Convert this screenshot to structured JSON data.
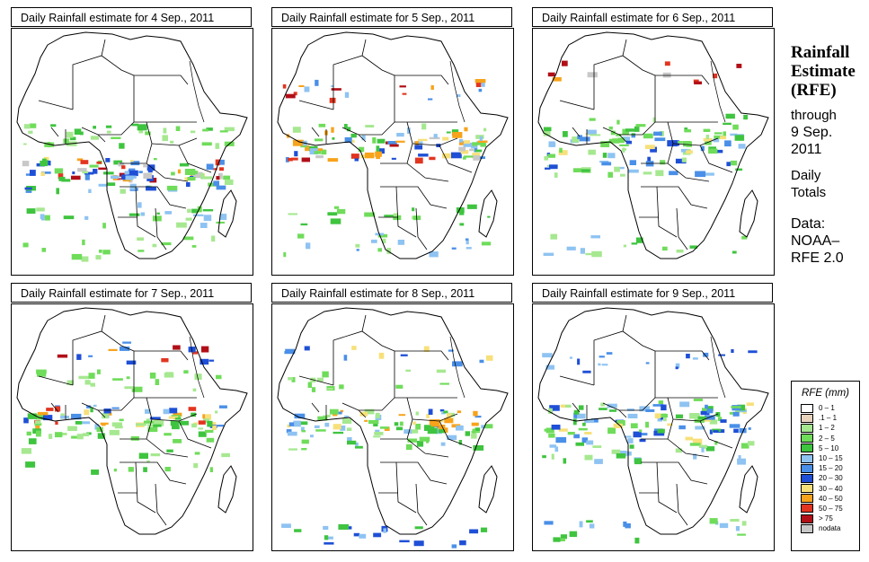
{
  "panels": [
    {
      "title": "Daily Rainfall estimate for  4 Sep., 2011",
      "pattern": [
        {
          "k": 0.52,
          "n": 60,
          "c": [
            3,
            4,
            5,
            6,
            7,
            8,
            9,
            10,
            11,
            12
          ]
        },
        {
          "k": 0.58,
          "n": 40,
          "c": [
            2,
            3,
            4,
            5,
            6,
            7
          ]
        },
        {
          "k": 0.35,
          "n": 35,
          "c": [
            2,
            3,
            4
          ]
        },
        {
          "k": 0.75,
          "n": 25,
          "c": [
            2,
            3,
            4,
            5
          ]
        },
        {
          "k": 0.92,
          "n": 15,
          "c": [
            2,
            3
          ]
        }
      ]
    },
    {
      "title": "Daily Rainfall estimate for  5 Sep., 2011",
      "pattern": [
        {
          "k": 0.42,
          "n": 60,
          "c": [
            3,
            4,
            5,
            6,
            7,
            8,
            9,
            10,
            11,
            12
          ]
        },
        {
          "k": 0.35,
          "n": 30,
          "c": [
            2,
            3,
            4,
            5,
            9
          ]
        },
        {
          "k": 0.12,
          "n": 20,
          "c": [
            5,
            6,
            9,
            10,
            11
          ]
        },
        {
          "k": 0.75,
          "n": 18,
          "c": [
            2,
            3,
            4
          ]
        },
        {
          "k": 0.9,
          "n": 18,
          "c": [
            2,
            3,
            5,
            6
          ]
        }
      ]
    },
    {
      "title": "Daily Rainfall estimate for  6 Sep., 2011",
      "pattern": [
        {
          "k": 0.38,
          "n": 55,
          "c": [
            2,
            3,
            4,
            5,
            6,
            7,
            8
          ]
        },
        {
          "k": 0.5,
          "n": 35,
          "c": [
            2,
            3,
            4,
            5,
            6,
            7
          ]
        },
        {
          "k": 0.3,
          "n": 20,
          "c": [
            2,
            3,
            4
          ]
        },
        {
          "k": 0.03,
          "n": 10,
          "c": [
            9,
            10,
            11,
            12
          ]
        },
        {
          "k": 0.9,
          "n": 15,
          "c": [
            2,
            3,
            4,
            5
          ]
        }
      ]
    },
    {
      "title": "Daily Rainfall estimate for  7 Sep., 2011",
      "pattern": [
        {
          "k": 0.38,
          "n": 65,
          "c": [
            2,
            3,
            4,
            5,
            6,
            7,
            8,
            9,
            10
          ]
        },
        {
          "k": 0.45,
          "n": 30,
          "c": [
            2,
            3,
            4
          ]
        },
        {
          "k": 0.2,
          "n": 20,
          "c": [
            2,
            3
          ]
        },
        {
          "k": 0.6,
          "n": 15,
          "c": [
            2,
            3,
            4
          ]
        },
        {
          "k": 0.05,
          "n": 15,
          "c": [
            6,
            7,
            9,
            10,
            11
          ]
        }
      ]
    },
    {
      "title": "Daily Rainfall estimate for  8 Sep., 2011",
      "pattern": [
        {
          "k": 0.4,
          "n": 65,
          "c": [
            2,
            3,
            4,
            5,
            6,
            7,
            8,
            9
          ]
        },
        {
          "k": 0.5,
          "n": 30,
          "c": [
            2,
            3,
            4,
            5
          ]
        },
        {
          "k": 0.2,
          "n": 15,
          "c": [
            2,
            3
          ]
        },
        {
          "k": 0.98,
          "n": 20,
          "c": [
            4,
            5,
            6,
            7
          ]
        },
        {
          "k": 0.08,
          "n": 12,
          "c": [
            6,
            7,
            8
          ]
        }
      ]
    },
    {
      "title": "Daily Rainfall estimate for  9 Sep., 2011",
      "pattern": [
        {
          "k": 0.35,
          "n": 55,
          "c": [
            2,
            3,
            4,
            5,
            6,
            7,
            8
          ]
        },
        {
          "k": 0.45,
          "n": 40,
          "c": [
            3,
            4,
            5,
            6,
            7,
            8
          ]
        },
        {
          "k": 0.55,
          "n": 30,
          "c": [
            2,
            3,
            4,
            5
          ]
        },
        {
          "k": 0.1,
          "n": 18,
          "c": [
            5,
            6,
            7
          ]
        },
        {
          "k": 0.95,
          "n": 18,
          "c": [
            2,
            3,
            4,
            5,
            6
          ]
        }
      ]
    }
  ],
  "side": {
    "title_line1": "Rainfall",
    "title_line2": "Estimate",
    "title_line3": "(RFE)",
    "through": "through",
    "date_line1": "9 Sep.",
    "date_line2": "2011",
    "daily_line1": "Daily",
    "daily_line2": "Totals",
    "data_line1": "Data:",
    "data_line2": "NOAA–",
    "data_line3": "RFE 2.0"
  },
  "legend": {
    "title": "RFE (mm)",
    "items": [
      {
        "label": "0 – 1",
        "color": "#ffffff"
      },
      {
        "label": ".1 – 1",
        "color": "#e8d3bd"
      },
      {
        "label": "1 – 2",
        "color": "#a6e890"
      },
      {
        "label": "2 – 5",
        "color": "#6fdc5a"
      },
      {
        "label": "5 – 10",
        "color": "#3fc43f"
      },
      {
        "label": "10 – 15",
        "color": "#8ec3f2"
      },
      {
        "label": "15 – 20",
        "color": "#4a8fe8"
      },
      {
        "label": "20 – 30",
        "color": "#1f4fd6"
      },
      {
        "label": "30 – 40",
        "color": "#f7e07a"
      },
      {
        "label": "40 – 50",
        "color": "#f7a31b"
      },
      {
        "label": "50 – 75",
        "color": "#e2351f"
      },
      {
        "label": "> 75",
        "color": "#b10f17"
      },
      {
        "label": "nodata",
        "color": "#c8c8c8"
      }
    ]
  },
  "colors": {
    "border": "#000000",
    "background": "#ffffff"
  }
}
